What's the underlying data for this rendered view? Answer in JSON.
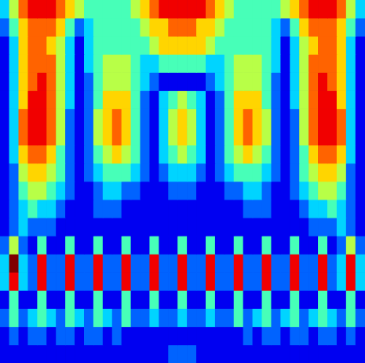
{
  "chart_data": {
    "type": "heatmap",
    "tick_labels": false,
    "color_range": [
      0,
      9
    ],
    "cells": [
      [
        3,
        5,
        7,
        8,
        8,
        8,
        7,
        6,
        5,
        4,
        4,
        4,
        4,
        4,
        5,
        6,
        7,
        8,
        8,
        8,
        8,
        8,
        7,
        6,
        5,
        4,
        4,
        4,
        4,
        4,
        5,
        6,
        7,
        8,
        8,
        8,
        7,
        5,
        3
      ],
      [
        2,
        4,
        6,
        7,
        7,
        7,
        6,
        4,
        2,
        3,
        4,
        4,
        4,
        4,
        4,
        5,
        6,
        6,
        7,
        7,
        7,
        6,
        6,
        5,
        4,
        4,
        4,
        4,
        4,
        3,
        2,
        4,
        6,
        7,
        7,
        7,
        6,
        4,
        2
      ],
      [
        1,
        3,
        6,
        7,
        7,
        6,
        5,
        3,
        1,
        3,
        4,
        4,
        4,
        4,
        4,
        4,
        5,
        6,
        6,
        6,
        6,
        6,
        5,
        4,
        4,
        4,
        4,
        4,
        4,
        3,
        1,
        3,
        5,
        6,
        7,
        7,
        6,
        3,
        1
      ],
      [
        1,
        3,
        6,
        7,
        7,
        7,
        5,
        3,
        1,
        3,
        4,
        5,
        5,
        5,
        4,
        3,
        3,
        4,
        4,
        4,
        4,
        4,
        3,
        3,
        4,
        5,
        5,
        5,
        4,
        3,
        1,
        3,
        5,
        7,
        7,
        7,
        6,
        3,
        1
      ],
      [
        1,
        3,
        6,
        7,
        8,
        7,
        5,
        3,
        1,
        2,
        4,
        5,
        5,
        5,
        4,
        3,
        2,
        1,
        1,
        1,
        1,
        1,
        2,
        3,
        4,
        5,
        5,
        5,
        4,
        2,
        1,
        3,
        5,
        7,
        8,
        7,
        6,
        3,
        1
      ],
      [
        1,
        3,
        6,
        8,
        8,
        7,
        5,
        3,
        1,
        2,
        4,
        6,
        6,
        6,
        4,
        2,
        1,
        3,
        4,
        5,
        4,
        3,
        1,
        2,
        4,
        6,
        6,
        6,
        4,
        2,
        1,
        3,
        5,
        7,
        8,
        8,
        6,
        3,
        1
      ],
      [
        1,
        3,
        7,
        8,
        8,
        7,
        5,
        2,
        1,
        2,
        5,
        6,
        7,
        6,
        4,
        2,
        1,
        3,
        5,
        6,
        5,
        3,
        1,
        2,
        4,
        6,
        7,
        6,
        5,
        2,
        1,
        2,
        5,
        7,
        8,
        8,
        7,
        3,
        1
      ],
      [
        1,
        3,
        7,
        8,
        8,
        7,
        5,
        2,
        1,
        2,
        5,
        6,
        7,
        6,
        4,
        2,
        1,
        3,
        5,
        6,
        5,
        3,
        1,
        2,
        4,
        6,
        7,
        6,
        5,
        2,
        1,
        2,
        5,
        7,
        8,
        8,
        7,
        3,
        1
      ],
      [
        1,
        3,
        6,
        7,
        7,
        6,
        4,
        2,
        1,
        2,
        4,
        5,
        6,
        5,
        4,
        2,
        1,
        3,
        4,
        5,
        4,
        3,
        1,
        2,
        4,
        5,
        6,
        5,
        4,
        2,
        1,
        2,
        4,
        6,
        7,
        7,
        6,
        3,
        1
      ],
      [
        1,
        2,
        5,
        6,
        6,
        5,
        4,
        2,
        1,
        2,
        3,
        4,
        4,
        4,
        3,
        2,
        1,
        2,
        3,
        3,
        3,
        2,
        1,
        2,
        3,
        4,
        4,
        4,
        3,
        2,
        1,
        2,
        4,
        5,
        6,
        6,
        5,
        2,
        1
      ],
      [
        1,
        2,
        4,
        5,
        5,
        4,
        3,
        2,
        1,
        1,
        2,
        3,
        3,
        2,
        2,
        1,
        1,
        1,
        2,
        2,
        2,
        1,
        1,
        1,
        2,
        2,
        3,
        3,
        2,
        1,
        1,
        2,
        3,
        4,
        5,
        5,
        4,
        2,
        1
      ],
      [
        1,
        2,
        3,
        4,
        3,
        3,
        2,
        1,
        1,
        1,
        2,
        2,
        2,
        1,
        1,
        1,
        1,
        1,
        1,
        1,
        1,
        1,
        1,
        1,
        1,
        1,
        2,
        2,
        2,
        1,
        1,
        1,
        2,
        3,
        3,
        4,
        3,
        2,
        1
      ],
      [
        1,
        2,
        3,
        2,
        2,
        2,
        1,
        1,
        1,
        1,
        1,
        1,
        1,
        1,
        1,
        1,
        1,
        1,
        1,
        1,
        1,
        1,
        1,
        1,
        1,
        1,
        1,
        1,
        1,
        1,
        1,
        1,
        1,
        2,
        2,
        2,
        3,
        2,
        1
      ],
      [
        2,
        5,
        2,
        1,
        4,
        1,
        1,
        4,
        1,
        1,
        4,
        1,
        1,
        4,
        1,
        1,
        4,
        1,
        1,
        4,
        1,
        1,
        4,
        1,
        1,
        4,
        1,
        1,
        4,
        1,
        1,
        4,
        1,
        1,
        4,
        1,
        2,
        5,
        2
      ],
      [
        3,
        9,
        3,
        2,
        8,
        2,
        2,
        8,
        2,
        2,
        8,
        2,
        2,
        8,
        2,
        2,
        8,
        2,
        2,
        8,
        2,
        2,
        8,
        2,
        2,
        8,
        2,
        2,
        8,
        2,
        2,
        8,
        2,
        2,
        8,
        2,
        3,
        8,
        3
      ],
      [
        3,
        8,
        3,
        2,
        8,
        2,
        2,
        8,
        2,
        2,
        8,
        2,
        2,
        8,
        2,
        2,
        8,
        2,
        2,
        8,
        2,
        2,
        8,
        2,
        2,
        8,
        2,
        2,
        8,
        2,
        2,
        8,
        2,
        2,
        8,
        2,
        3,
        8,
        3
      ],
      [
        1,
        4,
        1,
        1,
        4,
        1,
        1,
        4,
        1,
        1,
        4,
        1,
        1,
        4,
        1,
        1,
        4,
        1,
        1,
        4,
        1,
        1,
        4,
        1,
        1,
        4,
        1,
        1,
        4,
        1,
        1,
        4,
        1,
        1,
        4,
        1,
        1,
        4,
        1
      ],
      [
        2,
        4,
        2,
        3,
        4,
        3,
        2,
        4,
        3,
        2,
        4,
        3,
        2,
        4,
        2,
        2,
        3,
        2,
        2,
        3,
        2,
        2,
        3,
        2,
        2,
        4,
        2,
        3,
        4,
        2,
        3,
        4,
        2,
        3,
        4,
        3,
        2,
        4,
        2
      ],
      [
        1,
        2,
        1,
        2,
        2,
        1,
        2,
        2,
        1,
        2,
        2,
        1,
        2,
        1,
        1,
        1,
        1,
        1,
        1,
        1,
        1,
        1,
        1,
        1,
        1,
        1,
        2,
        1,
        2,
        2,
        1,
        2,
        2,
        1,
        2,
        2,
        1,
        2,
        1
      ],
      [
        1,
        1,
        1,
        1,
        1,
        1,
        1,
        1,
        1,
        1,
        1,
        1,
        1,
        1,
        1,
        1,
        1,
        1,
        2,
        2,
        2,
        1,
        1,
        1,
        1,
        1,
        1,
        1,
        1,
        1,
        1,
        1,
        1,
        1,
        1,
        1,
        1,
        1,
        1
      ]
    ]
  }
}
